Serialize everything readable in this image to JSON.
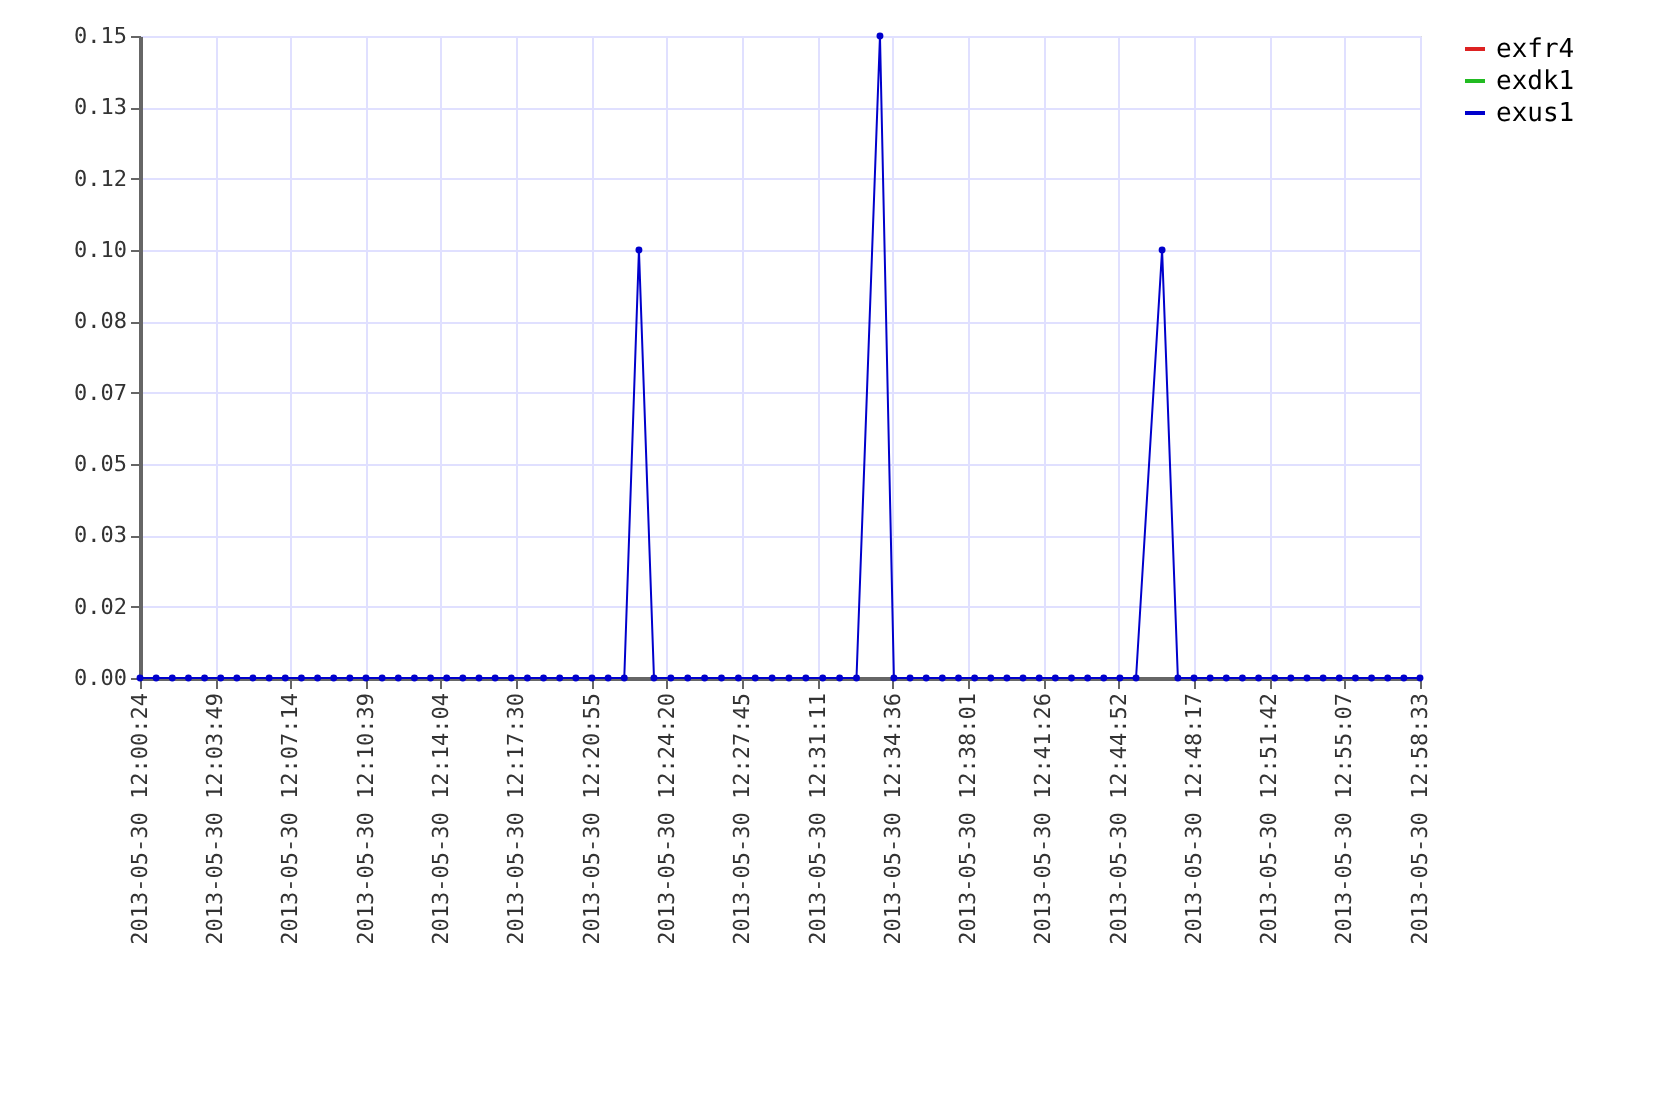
{
  "chart_data": {
    "type": "line",
    "x": [
      "2013-05-30T12:00:24",
      "2013-05-30T12:01:08",
      "2013-05-30T12:01:52",
      "2013-05-30T12:02:36",
      "2013-05-30T12:03:20",
      "2013-05-30T12:04:04",
      "2013-05-30T12:04:48",
      "2013-05-30T12:05:32",
      "2013-05-30T12:06:16",
      "2013-05-30T12:07:00",
      "2013-05-30T12:07:44",
      "2013-05-30T12:08:28",
      "2013-05-30T12:09:12",
      "2013-05-30T12:09:56",
      "2013-05-30T12:10:40",
      "2013-05-30T12:11:24",
      "2013-05-30T12:12:08",
      "2013-05-30T12:12:52",
      "2013-05-30T12:13:36",
      "2013-05-30T12:14:20",
      "2013-05-30T12:15:04",
      "2013-05-30T12:15:48",
      "2013-05-30T12:16:32",
      "2013-05-30T12:17:16",
      "2013-05-30T12:18:00",
      "2013-05-30T12:18:44",
      "2013-05-30T12:19:28",
      "2013-05-30T12:20:12",
      "2013-05-30T12:20:56",
      "2013-05-30T12:21:40",
      "2013-05-30T12:22:24",
      "2013-05-30T12:23:04",
      "2013-05-30T12:23:45",
      "2013-05-30T12:24:31",
      "2013-05-30T12:25:17",
      "2013-05-30T12:26:03",
      "2013-05-30T12:26:49",
      "2013-05-30T12:27:35",
      "2013-05-30T12:28:21",
      "2013-05-30T12:29:07",
      "2013-05-30T12:29:53",
      "2013-05-30T12:30:39",
      "2013-05-30T12:31:25",
      "2013-05-30T12:32:11",
      "2013-05-30T12:32:57",
      "2013-05-30T12:34:01",
      "2013-05-30T12:34:39",
      "2013-05-30T12:35:23",
      "2013-05-30T12:36:07",
      "2013-05-30T12:36:51",
      "2013-05-30T12:37:35",
      "2013-05-30T12:38:19",
      "2013-05-30T12:39:03",
      "2013-05-30T12:39:47",
      "2013-05-30T12:40:31",
      "2013-05-30T12:41:15",
      "2013-05-30T12:41:59",
      "2013-05-30T12:42:43",
      "2013-05-30T12:43:27",
      "2013-05-30T12:44:11",
      "2013-05-30T12:44:55",
      "2013-05-30T12:45:39",
      "2013-05-30T12:46:50",
      "2013-05-30T12:47:33",
      "2013-05-30T12:48:17",
      "2013-05-30T12:49:01",
      "2013-05-30T12:49:45",
      "2013-05-30T12:50:29",
      "2013-05-30T12:51:13",
      "2013-05-30T12:51:57",
      "2013-05-30T12:52:41",
      "2013-05-30T12:53:25",
      "2013-05-30T12:54:09",
      "2013-05-30T12:54:53",
      "2013-05-30T12:55:37",
      "2013-05-30T12:56:21",
      "2013-05-30T12:57:05",
      "2013-05-30T12:57:49",
      "2013-05-30T12:58:33"
    ],
    "series": [
      {
        "name": "exfr4",
        "color": "#dd2222",
        "values": [
          null,
          null,
          null,
          null,
          null,
          null,
          null,
          null,
          null,
          null,
          null,
          null,
          null,
          null,
          null,
          null,
          null,
          null,
          null,
          null,
          null,
          null,
          null,
          null,
          null,
          null,
          null,
          null,
          null,
          null,
          null,
          null,
          null,
          null,
          null,
          null,
          null,
          null,
          null,
          null,
          null,
          null,
          null,
          null,
          null,
          null,
          null,
          null,
          null,
          null,
          null,
          null,
          null,
          null,
          null,
          null,
          null,
          null,
          null,
          null,
          null,
          null,
          null,
          null,
          null,
          null,
          null,
          null,
          null,
          null,
          null,
          null,
          null,
          null,
          null,
          null,
          null,
          null,
          null
        ]
      },
      {
        "name": "exdk1",
        "color": "#22bb22",
        "values": [
          null,
          null,
          null,
          null,
          null,
          null,
          null,
          null,
          null,
          null,
          null,
          null,
          null,
          null,
          null,
          null,
          null,
          null,
          null,
          null,
          null,
          null,
          null,
          null,
          null,
          null,
          null,
          null,
          null,
          null,
          null,
          null,
          null,
          null,
          null,
          null,
          null,
          null,
          null,
          null,
          null,
          null,
          null,
          null,
          null,
          null,
          null,
          null,
          null,
          null,
          null,
          null,
          null,
          null,
          null,
          null,
          null,
          null,
          null,
          null,
          null,
          null,
          null,
          null,
          null,
          null,
          null,
          null,
          null,
          null,
          null,
          null,
          null,
          null,
          null,
          null,
          null,
          null,
          null
        ]
      },
      {
        "name": "exus1",
        "color": "#0000cc",
        "values": [
          0,
          0,
          0,
          0,
          0,
          0,
          0,
          0,
          0,
          0,
          0,
          0,
          0,
          0,
          0,
          0,
          0,
          0,
          0,
          0,
          0,
          0,
          0,
          0,
          0,
          0,
          0,
          0,
          0,
          0,
          0,
          0.1,
          0,
          0,
          0,
          0,
          0,
          0,
          0,
          0,
          0,
          0,
          0,
          0,
          0,
          0.15,
          0,
          0,
          0,
          0,
          0,
          0,
          0,
          0,
          0,
          0,
          0,
          0,
          0,
          0,
          0,
          0,
          0.1,
          0,
          0,
          0,
          0,
          0,
          0,
          0,
          0,
          0,
          0,
          0,
          0,
          0,
          0,
          0,
          0
        ]
      }
    ],
    "xlim": [
      "2013-05-30T12:00:24",
      "2013-05-30T12:58:33"
    ],
    "xticks": [
      {
        "value": "2013-05-30T12:00:24",
        "label": "2013-05-30 12:00:24"
      },
      {
        "value": "2013-05-30T12:03:49",
        "label": "2013-05-30 12:03:49"
      },
      {
        "value": "2013-05-30T12:07:14",
        "label": "2013-05-30 12:07:14"
      },
      {
        "value": "2013-05-30T12:10:39",
        "label": "2013-05-30 12:10:39"
      },
      {
        "value": "2013-05-30T12:14:04",
        "label": "2013-05-30 12:14:04"
      },
      {
        "value": "2013-05-30T12:17:30",
        "label": "2013-05-30 12:17:30"
      },
      {
        "value": "2013-05-30T12:20:55",
        "label": "2013-05-30 12:20:55"
      },
      {
        "value": "2013-05-30T12:24:20",
        "label": "2013-05-30 12:24:20"
      },
      {
        "value": "2013-05-30T12:27:45",
        "label": "2013-05-30 12:27:45"
      },
      {
        "value": "2013-05-30T12:31:11",
        "label": "2013-05-30 12:31:11"
      },
      {
        "value": "2013-05-30T12:34:36",
        "label": "2013-05-30 12:34:36"
      },
      {
        "value": "2013-05-30T12:38:01",
        "label": "2013-05-30 12:38:01"
      },
      {
        "value": "2013-05-30T12:41:26",
        "label": "2013-05-30 12:41:26"
      },
      {
        "value": "2013-05-30T12:44:52",
        "label": "2013-05-30 12:44:52"
      },
      {
        "value": "2013-05-30T12:48:17",
        "label": "2013-05-30 12:48:17"
      },
      {
        "value": "2013-05-30T12:51:42",
        "label": "2013-05-30 12:51:42"
      },
      {
        "value": "2013-05-30T12:55:07",
        "label": "2013-05-30 12:55:07"
      },
      {
        "value": "2013-05-30T12:58:33",
        "label": "2013-05-30 12:58:33"
      }
    ],
    "ylim": [
      0,
      0.15
    ],
    "yticks": [
      {
        "value": 0,
        "label": "0.00"
      },
      {
        "value": 0.0167,
        "label": "0.02"
      },
      {
        "value": 0.0333,
        "label": "0.03"
      },
      {
        "value": 0.05,
        "label": "0.05"
      },
      {
        "value": 0.0667,
        "label": "0.07"
      },
      {
        "value": 0.0833,
        "label": "0.08"
      },
      {
        "value": 0.1,
        "label": "0.10"
      },
      {
        "value": 0.1167,
        "label": "0.12"
      },
      {
        "value": 0.1333,
        "label": "0.13"
      },
      {
        "value": 0.15,
        "label": "0.15"
      }
    ],
    "grid": true,
    "legend": "top right",
    "marker": "circle",
    "line_style": "solid"
  }
}
